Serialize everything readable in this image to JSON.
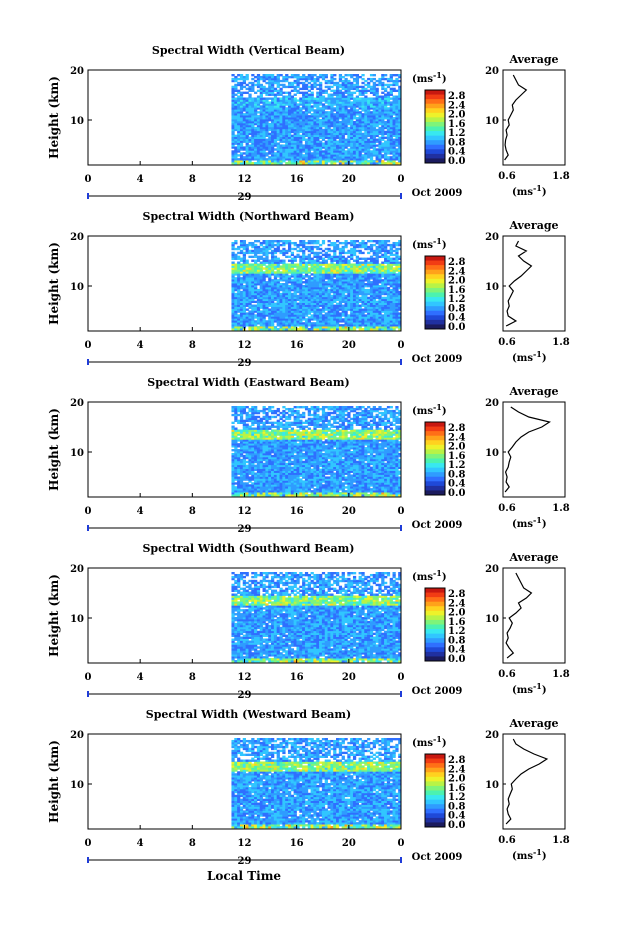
{
  "figure": {
    "xlabel": "Local Time",
    "date_label": "Oct 2009",
    "day_label": "29"
  },
  "chart_data": [
    {
      "type": "heatmap",
      "title": "Spectral Width (Vertical Beam)",
      "ylabel": "Height (km)",
      "yticks": [
        "20",
        "10"
      ],
      "xticks": [
        "0",
        "4",
        "8",
        "12",
        "16",
        "20",
        "0"
      ],
      "xlim": [
        0,
        24
      ],
      "ylim": [
        1,
        20
      ],
      "data_start_hour": 11,
      "colorbar": {
        "unit": "(ms",
        "exp": "-1",
        "ticks": [
          "2.8",
          "2.4",
          "2.0",
          "1.6",
          "1.2",
          "0.8",
          "0.4",
          "0.0"
        ]
      },
      "profile": {
        "title": "Average",
        "ylim": [
          1,
          20
        ],
        "xlim": [
          0.6,
          1.8
        ],
        "xticks": [
          "0.6",
          "1.8"
        ],
        "yticks": [
          "20",
          "10"
        ],
        "unit": "(ms",
        "exp": "-1",
        "heights": [
          2,
          3,
          4,
          5,
          6,
          7,
          8,
          9,
          10,
          11,
          12,
          13,
          14,
          15,
          16,
          17,
          18,
          19
        ],
        "values": [
          0.63,
          0.7,
          0.66,
          0.64,
          0.65,
          0.68,
          0.66,
          0.72,
          0.7,
          0.75,
          0.8,
          0.78,
          0.85,
          0.95,
          1.05,
          0.9,
          0.85,
          0.8
        ]
      }
    },
    {
      "type": "heatmap",
      "title": "Spectral Width (Northward Beam)",
      "ylabel": "Height (km)",
      "yticks": [
        "20",
        "10"
      ],
      "xticks": [
        "0",
        "4",
        "8",
        "12",
        "16",
        "20",
        "0"
      ],
      "xlim": [
        0,
        24
      ],
      "ylim": [
        1,
        20
      ],
      "data_start_hour": 11,
      "colorbar": {
        "unit": "(ms",
        "exp": "-1",
        "ticks": [
          "2.8",
          "2.4",
          "2.0",
          "1.6",
          "1.2",
          "0.8",
          "0.4",
          "0.0"
        ]
      },
      "profile": {
        "title": "Average",
        "ylim": [
          1,
          20
        ],
        "xlim": [
          0.6,
          1.8
        ],
        "xticks": [
          "0.6",
          "1.8"
        ],
        "yticks": [
          "20",
          "10"
        ],
        "unit": "(ms",
        "exp": "-1",
        "heights": [
          2,
          3,
          4,
          5,
          6,
          7,
          8,
          9,
          10,
          11,
          12,
          13,
          14,
          15,
          16,
          17,
          18,
          19
        ],
        "values": [
          0.66,
          0.85,
          0.7,
          0.68,
          0.72,
          0.7,
          0.75,
          0.8,
          0.72,
          0.82,
          0.95,
          1.05,
          1.15,
          1.0,
          0.9,
          1.05,
          0.85,
          0.9
        ]
      }
    },
    {
      "type": "heatmap",
      "title": "Spectral Width (Eastward Beam)",
      "ylabel": "Height (km)",
      "yticks": [
        "20",
        "10"
      ],
      "xticks": [
        "0",
        "4",
        "8",
        "12",
        "16",
        "20",
        "0"
      ],
      "xlim": [
        0,
        24
      ],
      "ylim": [
        1,
        20
      ],
      "data_start_hour": 11,
      "colorbar": {
        "unit": "(ms",
        "exp": "-1",
        "ticks": [
          "2.8",
          "2.4",
          "2.0",
          "1.6",
          "1.2",
          "0.8",
          "0.4",
          "0.0"
        ]
      },
      "profile": {
        "title": "Average",
        "ylim": [
          1,
          20
        ],
        "xlim": [
          0.6,
          1.8
        ],
        "xticks": [
          "0.6",
          "1.8"
        ],
        "yticks": [
          "20",
          "10"
        ],
        "unit": "(ms",
        "exp": "-1",
        "heights": [
          2,
          3,
          4,
          5,
          6,
          7,
          8,
          9,
          10,
          11,
          12,
          13,
          14,
          15,
          16,
          17,
          18,
          19
        ],
        "values": [
          0.64,
          0.72,
          0.66,
          0.68,
          0.65,
          0.7,
          0.72,
          0.75,
          0.7,
          0.78,
          0.85,
          0.95,
          1.1,
          1.35,
          1.5,
          1.1,
          0.9,
          0.75
        ]
      }
    },
    {
      "type": "heatmap",
      "title": "Spectral Width (Southward Beam)",
      "ylabel": "Height (km)",
      "yticks": [
        "20",
        "10"
      ],
      "xticks": [
        "0",
        "4",
        "8",
        "12",
        "16",
        "20",
        "0"
      ],
      "xlim": [
        0,
        24
      ],
      "ylim": [
        1,
        20
      ],
      "data_start_hour": 11,
      "colorbar": {
        "unit": "(ms",
        "exp": "-1",
        "ticks": [
          "2.8",
          "2.4",
          "2.0",
          "1.6",
          "1.2",
          "0.8",
          "0.4",
          "0.0"
        ]
      },
      "profile": {
        "title": "Average",
        "ylim": [
          1,
          20
        ],
        "xlim": [
          0.6,
          1.8
        ],
        "xticks": [
          "0.6",
          "1.8"
        ],
        "yticks": [
          "20",
          "10"
        ],
        "unit": "(ms",
        "exp": "-1",
        "heights": [
          2,
          3,
          4,
          5,
          6,
          7,
          8,
          9,
          10,
          11,
          12,
          13,
          14,
          15,
          16,
          17,
          18,
          19
        ],
        "values": [
          0.68,
          0.8,
          0.72,
          0.66,
          0.7,
          0.68,
          0.74,
          0.78,
          0.72,
          0.85,
          0.95,
          0.9,
          1.05,
          1.15,
          1.0,
          0.95,
          0.9,
          0.85
        ]
      }
    },
    {
      "type": "heatmap",
      "title": "Spectral Width (Westward Beam)",
      "ylabel": "Height (km)",
      "yticks": [
        "20",
        "10"
      ],
      "xticks": [
        "0",
        "4",
        "8",
        "12",
        "16",
        "20",
        "0"
      ],
      "xlim": [
        0,
        24
      ],
      "ylim": [
        1,
        20
      ],
      "data_start_hour": 11,
      "colorbar": {
        "unit": "(ms",
        "exp": "-1",
        "ticks": [
          "2.8",
          "2.4",
          "2.0",
          "1.6",
          "1.2",
          "0.8",
          "0.4",
          "0.0"
        ]
      },
      "profile": {
        "title": "Average",
        "ylim": [
          1,
          20
        ],
        "xlim": [
          0.6,
          1.8
        ],
        "xticks": [
          "0.6",
          "1.8"
        ],
        "yticks": [
          "20",
          "10"
        ],
        "unit": "(ms",
        "exp": "-1",
        "heights": [
          2,
          3,
          4,
          5,
          6,
          7,
          8,
          9,
          10,
          11,
          12,
          13,
          14,
          15,
          16,
          17,
          18,
          19
        ],
        "values": [
          0.66,
          0.75,
          0.7,
          0.68,
          0.72,
          0.7,
          0.74,
          0.78,
          0.76,
          0.85,
          0.95,
          1.1,
          1.3,
          1.45,
          1.2,
          1.0,
          0.85,
          0.8
        ]
      }
    }
  ]
}
